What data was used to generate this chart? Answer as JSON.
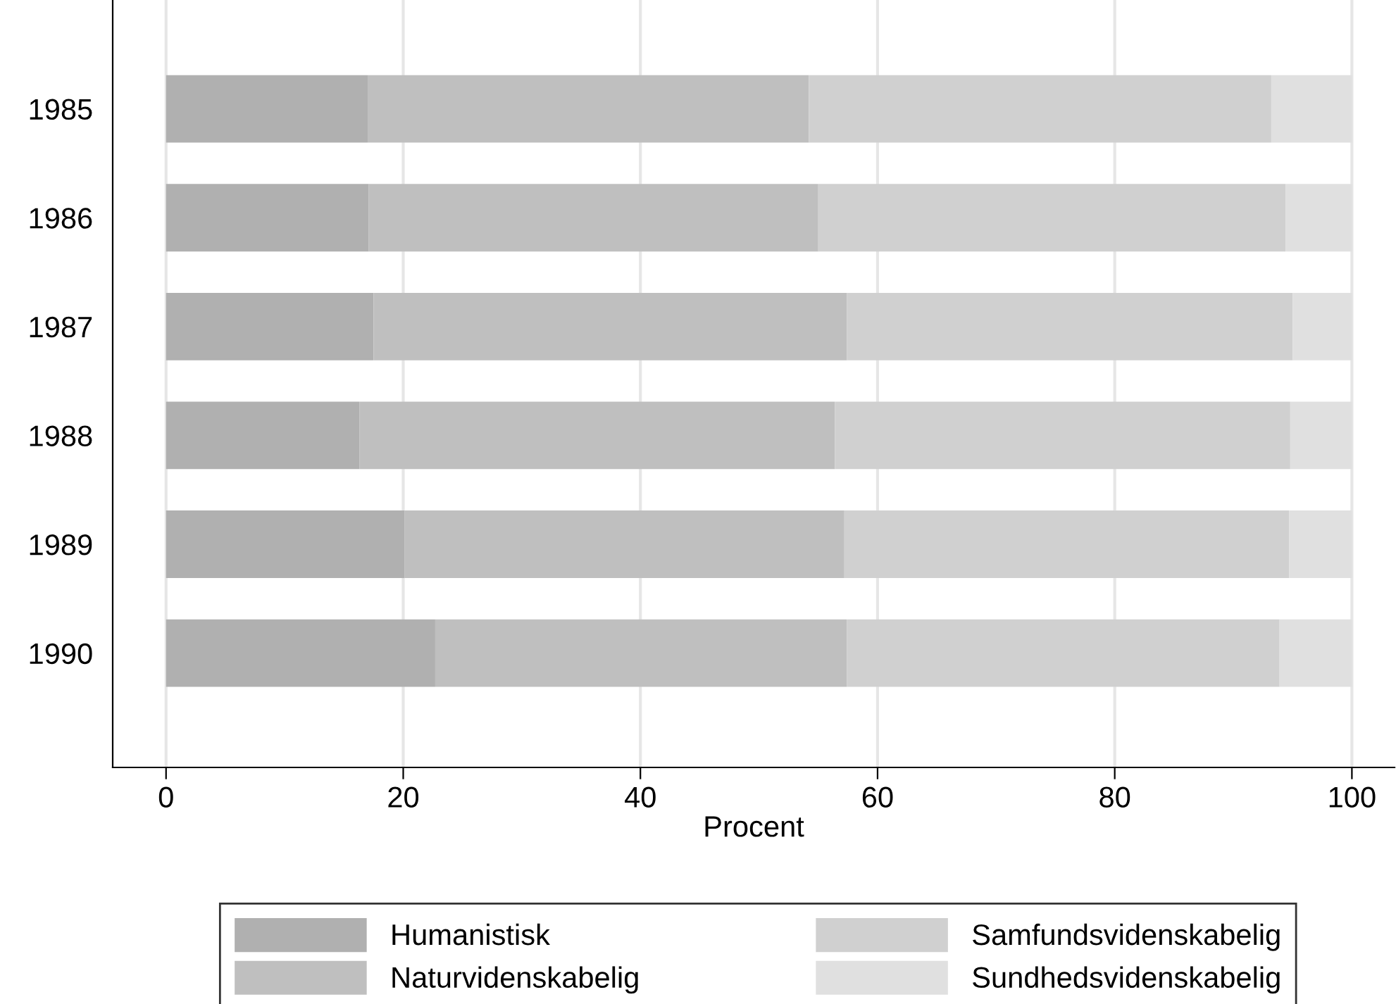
{
  "chart_data": {
    "type": "bar",
    "orientation": "horizontal",
    "stacked": true,
    "categories": [
      "1985",
      "1986",
      "1987",
      "1988",
      "1989",
      "1990"
    ],
    "series": [
      {
        "name": "Humanistisk",
        "color": "#b0b0b0",
        "values": [
          17.0,
          17.1,
          17.5,
          16.3,
          20.1,
          22.7
        ]
      },
      {
        "name": "Naturvidenskabelig",
        "color": "#bfbfbf",
        "values": [
          37.2,
          37.9,
          39.9,
          40.1,
          37.1,
          34.7
        ]
      },
      {
        "name": "Samfundsvidenskabelig",
        "color": "#d0d0d0",
        "values": [
          39.0,
          39.4,
          37.6,
          38.4,
          37.5,
          36.5
        ]
      },
      {
        "name": "Sundhedsvidenskabelig",
        "color": "#e0e0e0",
        "values": [
          6.8,
          5.6,
          5.0,
          5.2,
          5.3,
          6.1
        ]
      }
    ],
    "xlabel": "Procent",
    "xlim": [
      -4.5,
      103.6
    ],
    "xticks": [
      0,
      20,
      40,
      60,
      80,
      100
    ],
    "grid": "x",
    "legend": "bottom"
  }
}
